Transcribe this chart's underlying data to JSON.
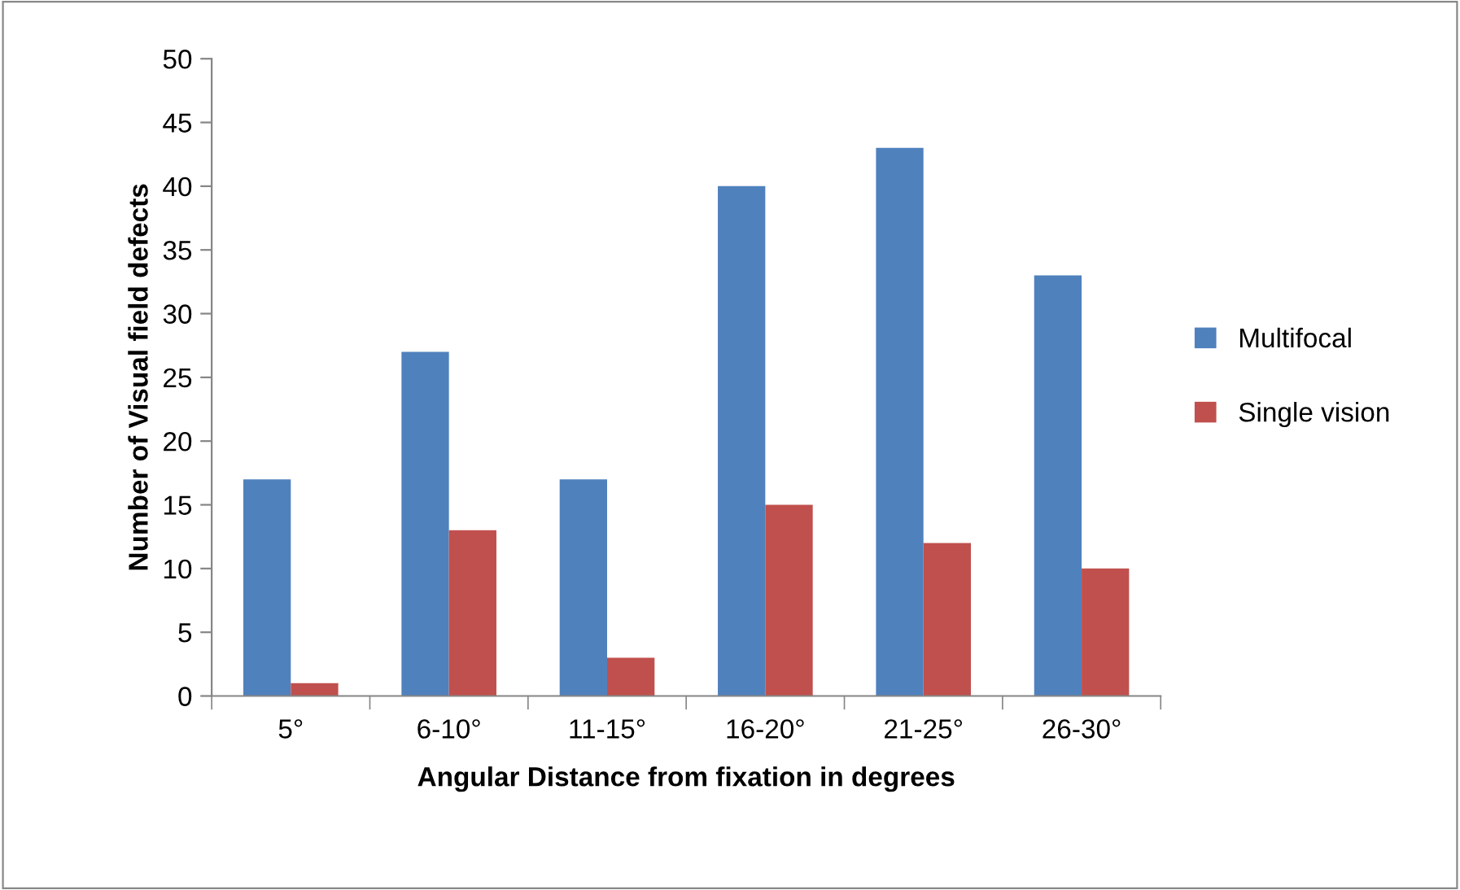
{
  "chart_data": {
    "type": "bar",
    "xlabel": "Angular Distance from fixation in degrees",
    "ylabel": "Number of Visual field defects",
    "categories": [
      "5°",
      "6-10°",
      "11-15°",
      "16-20°",
      "21-25°",
      "26-30°"
    ],
    "series": [
      {
        "name": "Multifocal",
        "color": "#4f81bd",
        "values": [
          17,
          27,
          17,
          40,
          43,
          33
        ]
      },
      {
        "name": "Single vision",
        "color": "#c0504d",
        "values": [
          1,
          13,
          3,
          15,
          12,
          10
        ]
      }
    ],
    "ylim": [
      0,
      50
    ],
    "yticks": [
      0,
      5,
      10,
      15,
      20,
      25,
      30,
      35,
      40,
      45,
      50
    ],
    "grid": false,
    "legend": "right"
  }
}
